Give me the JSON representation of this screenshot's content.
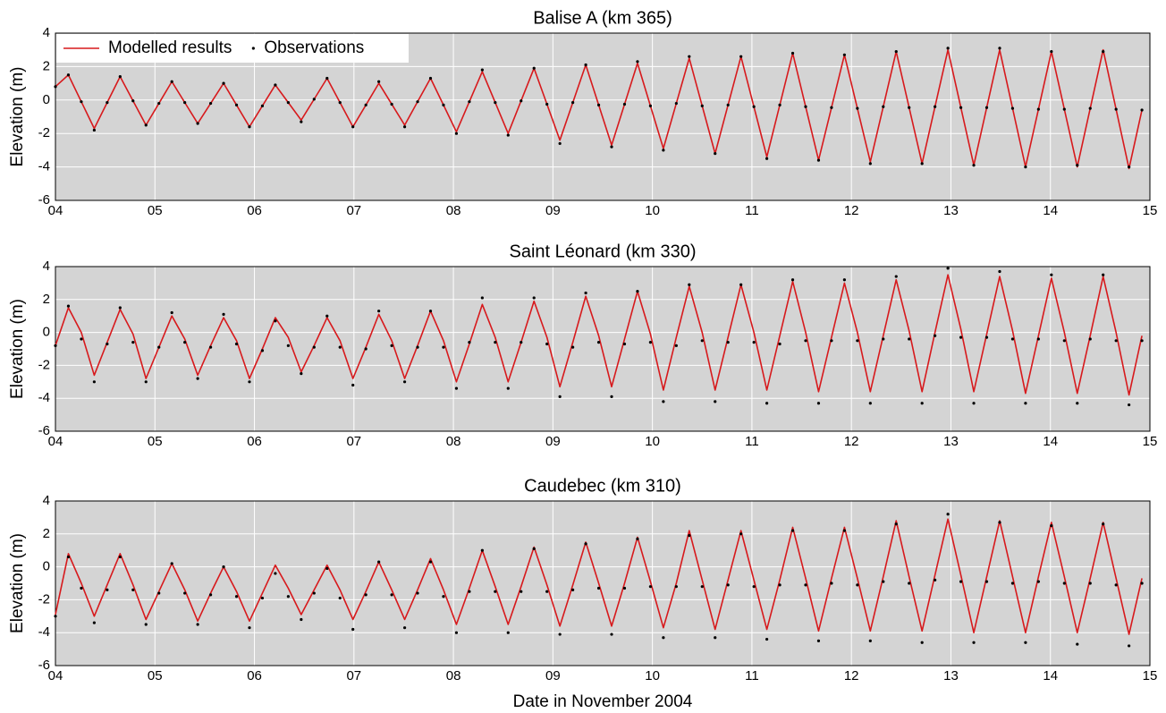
{
  "chart_data": [
    {
      "type": "line",
      "title": "Balise A (km 365)",
      "ylabel": "Elevation (m)",
      "legend": "upper left",
      "grid": true,
      "xlim": [
        4,
        15
      ],
      "xticks": [
        {
          "value": 4,
          "label": "04"
        },
        {
          "value": 5,
          "label": "05"
        },
        {
          "value": 6,
          "label": "06"
        },
        {
          "value": 7,
          "label": "07"
        },
        {
          "value": 8,
          "label": "08"
        },
        {
          "value": 9,
          "label": "09"
        },
        10,
        11,
        12,
        13,
        14,
        15
      ],
      "ylim": [
        -6,
        4
      ],
      "yticks": [
        -6,
        -4,
        -2,
        0,
        2,
        4
      ],
      "x": [
        4,
        4.13,
        4.26,
        4.39,
        4.52,
        4.65,
        4.78,
        4.91,
        5.04,
        5.17,
        5.3,
        5.43,
        5.56,
        5.69,
        5.82,
        5.95,
        6.08,
        6.21,
        6.34,
        6.47,
        6.6,
        6.73,
        6.86,
        6.99,
        7.12,
        7.25,
        7.38,
        7.51,
        7.64,
        7.77,
        7.9,
        8.03,
        8.16,
        8.29,
        8.42,
        8.55,
        8.68,
        8.81,
        8.94,
        9.07,
        9.2,
        9.33,
        9.46,
        9.59,
        9.72,
        9.85,
        9.98,
        10.11,
        10.24,
        10.37,
        10.5,
        10.63,
        10.76,
        10.89,
        11.02,
        11.15,
        11.28,
        11.41,
        11.54,
        11.67,
        11.8,
        11.93,
        12.06,
        12.19,
        12.32,
        12.45,
        12.58,
        12.71,
        12.84,
        12.97,
        13.1,
        13.23,
        13.36,
        13.49,
        13.62,
        13.75,
        13.88,
        14.01,
        14.14,
        14.27,
        14.4,
        14.53,
        14.66,
        14.79,
        14.92
      ],
      "series": [
        {
          "name": "Modelled results",
          "color": "#d7191c",
          "mode": "line",
          "values": [
            0.8,
            1.5,
            -0.1,
            -1.7,
            -0.15,
            1.4,
            -0.05,
            -1.5,
            -0.2,
            1.1,
            -0.15,
            -1.4,
            -0.2,
            1.0,
            -0.3,
            -1.6,
            -0.35,
            0.9,
            -0.15,
            -1.2,
            0.05,
            1.3,
            -0.15,
            -1.6,
            -0.3,
            1.0,
            -0.25,
            -1.5,
            -0.1,
            1.3,
            -0.3,
            -1.9,
            -0.1,
            1.7,
            -0.15,
            -2.0,
            -0.05,
            1.9,
            -0.25,
            -2.4,
            -0.15,
            2.1,
            -0.3,
            -2.7,
            -0.25,
            2.2,
            -0.35,
            -2.9,
            -0.2,
            2.5,
            -0.35,
            -3.2,
            -0.3,
            2.6,
            -0.4,
            -3.4,
            -0.3,
            2.8,
            -0.4,
            -3.6,
            -0.45,
            2.7,
            -0.5,
            -3.7,
            -0.4,
            2.9,
            -0.45,
            -3.8,
            -0.4,
            3.0,
            -0.45,
            -3.9,
            -0.45,
            3.0,
            -0.5,
            -4.0,
            -0.55,
            2.9,
            -0.55,
            -4.0,
            -0.5,
            3.0,
            -0.55,
            -4.1,
            -0.6
          ]
        },
        {
          "name": "Observations",
          "color": "#000000",
          "mode": "markers",
          "values": [
            0.8,
            1.5,
            -0.1,
            -1.8,
            -0.15,
            1.4,
            -0.05,
            -1.5,
            -0.2,
            1.1,
            -0.15,
            -1.4,
            -0.2,
            1.0,
            -0.3,
            -1.6,
            -0.35,
            0.9,
            -0.15,
            -1.3,
            0.05,
            1.3,
            -0.15,
            -1.6,
            -0.3,
            1.1,
            -0.25,
            -1.6,
            -0.1,
            1.3,
            -0.3,
            -2.0,
            -0.1,
            1.8,
            -0.15,
            -2.1,
            -0.05,
            1.9,
            -0.25,
            -2.6,
            -0.15,
            2.1,
            -0.3,
            -2.8,
            -0.25,
            2.3,
            -0.35,
            -3.0,
            -0.2,
            2.6,
            -0.35,
            -3.2,
            -0.3,
            2.6,
            -0.4,
            -3.5,
            -0.3,
            2.8,
            -0.4,
            -3.6,
            -0.45,
            2.7,
            -0.5,
            -3.8,
            -0.4,
            2.9,
            -0.45,
            -3.8,
            -0.4,
            3.1,
            -0.45,
            -3.9,
            -0.45,
            3.1,
            -0.5,
            -4.0,
            -0.55,
            2.9,
            -0.55,
            -3.9,
            -0.5,
            2.9,
            -0.55,
            -4.0,
            -0.6
          ]
        }
      ]
    },
    {
      "type": "line",
      "title": "Saint Léonard (km 330)",
      "ylabel": "Elevation (m)",
      "grid": true,
      "xlim": [
        4,
        15
      ],
      "xticks": [
        {
          "value": 4,
          "label": "04"
        },
        {
          "value": 5,
          "label": "05"
        },
        {
          "value": 6,
          "label": "06"
        },
        {
          "value": 7,
          "label": "07"
        },
        {
          "value": 8,
          "label": "08"
        },
        {
          "value": 9,
          "label": "09"
        },
        10,
        11,
        12,
        13,
        14,
        15
      ],
      "ylim": [
        -6,
        4
      ],
      "yticks": [
        -6,
        -4,
        -2,
        0,
        2,
        4
      ],
      "x": [
        4,
        4.13,
        4.26,
        4.39,
        4.52,
        4.65,
        4.78,
        4.91,
        5.04,
        5.17,
        5.3,
        5.43,
        5.56,
        5.69,
        5.82,
        5.95,
        6.08,
        6.21,
        6.34,
        6.47,
        6.6,
        6.73,
        6.86,
        6.99,
        7.12,
        7.25,
        7.38,
        7.51,
        7.64,
        7.77,
        7.9,
        8.03,
        8.16,
        8.29,
        8.42,
        8.55,
        8.68,
        8.81,
        8.94,
        9.07,
        9.2,
        9.33,
        9.46,
        9.59,
        9.72,
        9.85,
        9.98,
        10.11,
        10.24,
        10.37,
        10.5,
        10.63,
        10.76,
        10.89,
        11.02,
        11.15,
        11.28,
        11.41,
        11.54,
        11.67,
        11.8,
        11.93,
        12.06,
        12.19,
        12.32,
        12.45,
        12.58,
        12.71,
        12.84,
        12.97,
        13.1,
        13.23,
        13.36,
        13.49,
        13.62,
        13.75,
        13.88,
        14.01,
        14.14,
        14.27,
        14.4,
        14.53,
        14.66,
        14.79,
        14.92
      ],
      "series": [
        {
          "color": "#d7191c",
          "mode": "line",
          "values": [
            -0.8,
            1.5,
            0.0,
            -2.6,
            -0.6,
            1.4,
            -0.1,
            -2.8,
            -0.9,
            1.0,
            -0.4,
            -2.6,
            -0.8,
            0.9,
            -0.5,
            -2.8,
            -1.0,
            0.9,
            -0.3,
            -2.4,
            -0.8,
            0.9,
            -0.5,
            -2.8,
            -0.9,
            1.1,
            -0.5,
            -2.8,
            -0.8,
            1.3,
            -0.5,
            -3.0,
            -0.7,
            1.7,
            -0.3,
            -3.0,
            -0.6,
            1.9,
            -0.3,
            -3.3,
            -0.6,
            2.2,
            -0.2,
            -3.3,
            -0.4,
            2.5,
            -0.1,
            -3.5,
            -0.3,
            2.8,
            0.0,
            -3.5,
            -0.3,
            2.9,
            0.0,
            -3.5,
            -0.2,
            3.1,
            0.0,
            -3.6,
            -0.3,
            3.0,
            0.0,
            -3.6,
            -0.2,
            3.2,
            0.1,
            -3.6,
            0.0,
            3.5,
            0.2,
            -3.6,
            -0.1,
            3.4,
            0.1,
            -3.7,
            -0.2,
            3.3,
            0.0,
            -3.7,
            -0.2,
            3.4,
            0.0,
            -3.8,
            -0.2
          ]
        },
        {
          "color": "#000000",
          "mode": "markers",
          "values": [
            -0.8,
            1.6,
            -0.4,
            -3.0,
            -0.7,
            1.5,
            -0.6,
            -3.0,
            -0.9,
            1.2,
            -0.6,
            -2.8,
            -0.9,
            1.1,
            -0.7,
            -3.0,
            -1.1,
            0.7,
            -0.8,
            -2.5,
            -0.9,
            1.0,
            -0.9,
            -3.2,
            -1.0,
            1.3,
            -0.8,
            -3.0,
            -0.9,
            1.3,
            -0.9,
            -3.4,
            -0.6,
            2.1,
            -0.6,
            -3.4,
            -0.6,
            2.1,
            -0.7,
            -3.9,
            -0.9,
            2.4,
            -0.6,
            -3.9,
            -0.7,
            2.5,
            -0.6,
            -4.2,
            -0.8,
            2.9,
            -0.5,
            -4.2,
            -0.6,
            2.9,
            -0.6,
            -4.3,
            -0.7,
            3.2,
            -0.5,
            -4.3,
            -0.5,
            3.2,
            -0.5,
            -4.3,
            -0.4,
            3.4,
            -0.4,
            -4.3,
            -0.2,
            3.9,
            -0.3,
            -4.3,
            -0.3,
            3.7,
            -0.4,
            -4.3,
            -0.4,
            3.5,
            -0.5,
            -4.3,
            -0.4,
            3.5,
            -0.5,
            -4.4,
            -0.5
          ]
        }
      ]
    },
    {
      "type": "line",
      "title": "Caudebec (km 310)",
      "ylabel": "Elevation (m)",
      "xlabel": "Date in November 2004",
      "grid": true,
      "xlim": [
        4,
        15
      ],
      "xticks": [
        {
          "value": 4,
          "label": "04"
        },
        {
          "value": 5,
          "label": "05"
        },
        {
          "value": 6,
          "label": "06"
        },
        {
          "value": 7,
          "label": "07"
        },
        {
          "value": 8,
          "label": "08"
        },
        {
          "value": 9,
          "label": "09"
        },
        10,
        11,
        12,
        13,
        14,
        15
      ],
      "ylim": [
        -6,
        4
      ],
      "yticks": [
        -6,
        -4,
        -2,
        0,
        2,
        4
      ],
      "x": [
        4,
        4.13,
        4.26,
        4.39,
        4.52,
        4.65,
        4.78,
        4.91,
        5.04,
        5.17,
        5.3,
        5.43,
        5.56,
        5.69,
        5.82,
        5.95,
        6.08,
        6.21,
        6.34,
        6.47,
        6.6,
        6.73,
        6.86,
        6.99,
        7.12,
        7.25,
        7.38,
        7.51,
        7.64,
        7.77,
        7.9,
        8.03,
        8.16,
        8.29,
        8.42,
        8.55,
        8.68,
        8.81,
        8.94,
        9.07,
        9.2,
        9.33,
        9.46,
        9.59,
        9.72,
        9.85,
        9.98,
        10.11,
        10.24,
        10.37,
        10.5,
        10.63,
        10.76,
        10.89,
        11.02,
        11.15,
        11.28,
        11.41,
        11.54,
        11.67,
        11.8,
        11.93,
        12.06,
        12.19,
        12.32,
        12.45,
        12.58,
        12.71,
        12.84,
        12.97,
        13.1,
        13.23,
        13.36,
        13.49,
        13.62,
        13.75,
        13.88,
        14.01,
        14.14,
        14.27,
        14.4,
        14.53,
        14.66,
        14.79,
        14.92
      ],
      "series": [
        {
          "color": "#d7191c",
          "mode": "line",
          "values": [
            -2.9,
            0.8,
            -1.0,
            -3.0,
            -1.1,
            0.8,
            -1.1,
            -3.2,
            -1.5,
            0.2,
            -1.4,
            -3.3,
            -1.6,
            0.0,
            -1.5,
            -3.3,
            -1.6,
            0.1,
            -1.3,
            -2.9,
            -1.4,
            0.1,
            -1.4,
            -3.2,
            -1.5,
            0.3,
            -1.4,
            -3.2,
            -1.4,
            0.5,
            -1.4,
            -3.5,
            -1.3,
            1.0,
            -1.2,
            -3.5,
            -1.2,
            1.2,
            -1.1,
            -3.6,
            -1.1,
            1.5,
            -1.0,
            -3.6,
            -1.0,
            1.8,
            -0.9,
            -3.7,
            -1.0,
            2.2,
            -0.8,
            -3.8,
            -0.8,
            2.2,
            -0.8,
            -3.8,
            -0.8,
            2.4,
            -0.7,
            -3.9,
            -0.7,
            2.4,
            -0.7,
            -3.9,
            -0.6,
            2.8,
            -0.6,
            -3.9,
            -0.5,
            2.9,
            -0.5,
            -4.0,
            -0.6,
            2.8,
            -0.6,
            -4.0,
            -0.6,
            2.7,
            -0.6,
            -4.0,
            -0.7,
            2.7,
            -0.7,
            -4.1,
            -0.7
          ]
        },
        {
          "color": "#000000",
          "mode": "markers",
          "values": [
            -3.0,
            0.6,
            -1.3,
            -3.4,
            -1.4,
            0.6,
            -1.4,
            -3.5,
            -1.6,
            0.2,
            -1.6,
            -3.5,
            -1.7,
            0.0,
            -1.8,
            -3.7,
            -1.9,
            -0.4,
            -1.8,
            -3.2,
            -1.6,
            -0.1,
            -1.9,
            -3.8,
            -1.7,
            0.3,
            -1.7,
            -3.7,
            -1.6,
            0.3,
            -1.8,
            -4.0,
            -1.5,
            1.0,
            -1.5,
            -4.0,
            -1.5,
            1.1,
            -1.5,
            -4.1,
            -1.4,
            1.4,
            -1.3,
            -4.1,
            -1.3,
            1.7,
            -1.2,
            -4.3,
            -1.2,
            1.9,
            -1.2,
            -4.3,
            -1.1,
            2.0,
            -1.2,
            -4.4,
            -1.1,
            2.2,
            -1.1,
            -4.5,
            -1.0,
            2.2,
            -1.1,
            -4.5,
            -0.9,
            2.6,
            -1.0,
            -4.6,
            -0.8,
            3.2,
            -0.9,
            -4.6,
            -0.9,
            2.7,
            -1.0,
            -4.6,
            -0.9,
            2.5,
            -1.0,
            -4.7,
            -1.0,
            2.6,
            -1.1,
            -4.8,
            -1.0
          ]
        }
      ]
    }
  ]
}
